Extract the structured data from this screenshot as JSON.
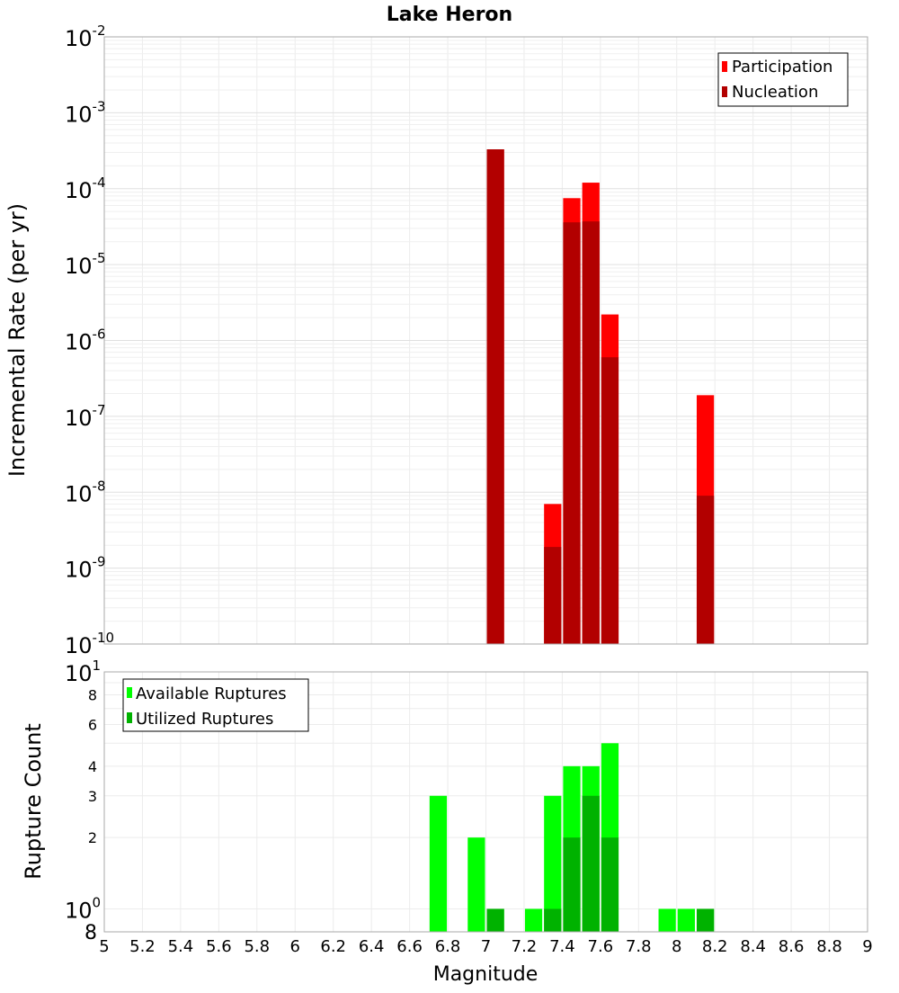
{
  "chart_data": [
    {
      "type": "bar",
      "title": "Lake Heron",
      "xlabel": "",
      "ylabel": "Incremental Rate (per yr)",
      "yscale": "log",
      "xlim": [
        5,
        9
      ],
      "ylim": [
        1e-10,
        0.01
      ],
      "grid": true,
      "legend_position": "top-right",
      "y_ticks": [
        {
          "base": "10",
          "exp": "-10"
        },
        {
          "base": "10",
          "exp": "-9"
        },
        {
          "base": "10",
          "exp": "-8"
        },
        {
          "base": "10",
          "exp": "-7"
        },
        {
          "base": "10",
          "exp": "-6"
        },
        {
          "base": "10",
          "exp": "-5"
        },
        {
          "base": "10",
          "exp": "-4"
        },
        {
          "base": "10",
          "exp": "-3"
        },
        {
          "base": "10",
          "exp": "-2"
        }
      ],
      "series": [
        {
          "name": "Participation",
          "color": "#ff0000",
          "x": [
            7.05,
            7.35,
            7.45,
            7.55,
            7.65,
            8.15
          ],
          "values": [
            0.00033,
            7e-09,
            7.5e-05,
            0.00012,
            2.2e-06,
            1.9e-07
          ]
        },
        {
          "name": "Nucleation",
          "color": "#b20000",
          "x": [
            7.05,
            7.35,
            7.45,
            7.55,
            7.65,
            8.15
          ],
          "values": [
            0.00033,
            1.9e-09,
            3.6e-05,
            3.7e-05,
            6e-07,
            9e-09
          ]
        }
      ]
    },
    {
      "type": "bar",
      "title": "",
      "xlabel": "Magnitude",
      "ylabel": "Rupture Count",
      "yscale": "log",
      "xlim": [
        5,
        9
      ],
      "ylim": [
        0.8,
        10
      ],
      "grid": true,
      "legend_position": "top-left",
      "x_ticks": [
        "5",
        "5.2",
        "5.4",
        "5.6",
        "5.8",
        "6",
        "6.2",
        "6.4",
        "6.6",
        "6.8",
        "7",
        "7.2",
        "7.4",
        "7.6",
        "7.8",
        "8",
        "8.2",
        "8.4",
        "8.6",
        "8.8",
        "9"
      ],
      "y_minor_ticks": [
        "8",
        "2",
        "3",
        "4",
        "6",
        "8"
      ],
      "y_major_ticks": [
        {
          "base": "10",
          "exp": "0"
        },
        {
          "base": "10",
          "exp": "1"
        }
      ],
      "series": [
        {
          "name": "Available Ruptures",
          "color": "#00ff00",
          "x": [
            6.75,
            6.95,
            7.05,
            7.25,
            7.35,
            7.45,
            7.55,
            7.65,
            7.95,
            8.05,
            8.15
          ],
          "values": [
            3,
            2,
            1,
            1,
            3,
            4,
            4,
            5,
            1,
            1,
            1
          ]
        },
        {
          "name": "Utilized Ruptures",
          "color": "#00b200",
          "x": [
            7.05,
            7.35,
            7.45,
            7.55,
            7.65,
            8.15
          ],
          "values": [
            1,
            1,
            2,
            3,
            2,
            1
          ]
        }
      ]
    }
  ]
}
